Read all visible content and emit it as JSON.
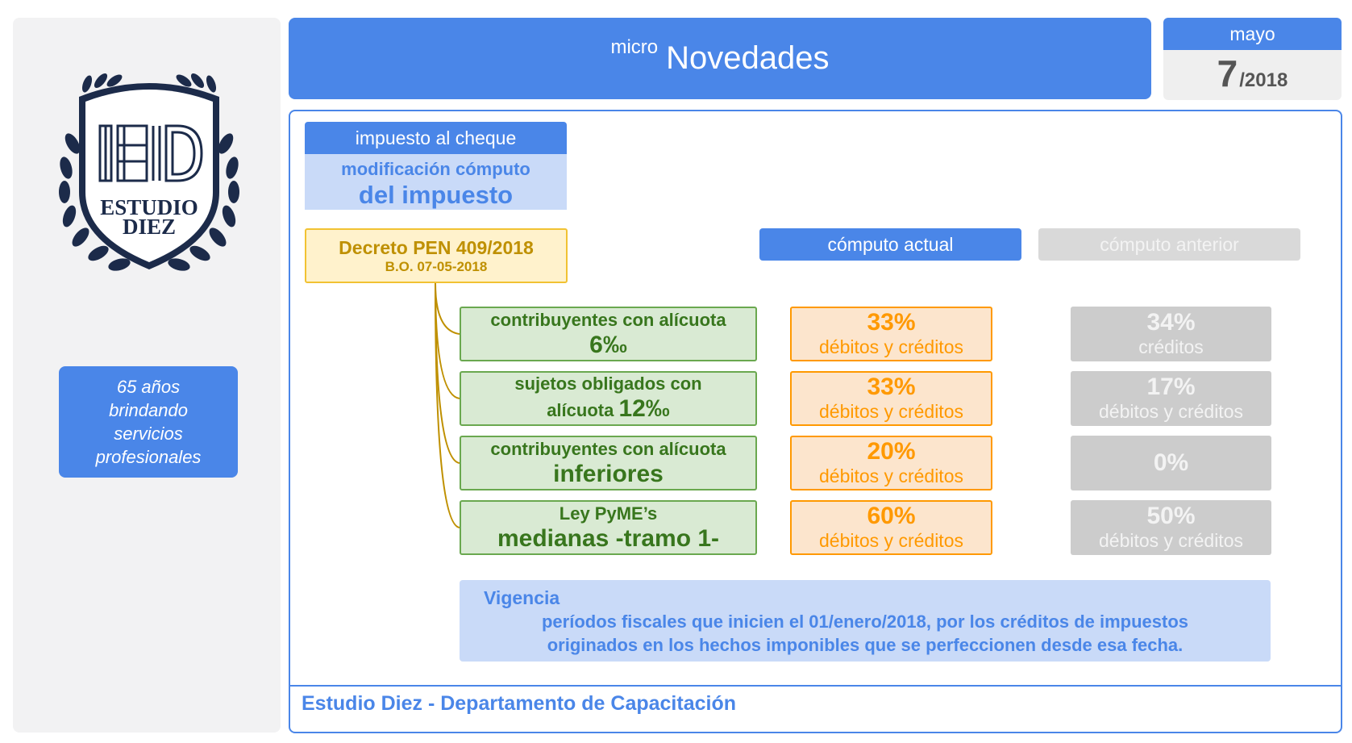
{
  "sidebar": {
    "logo": {
      "line1": "ESTUDIO",
      "line2": "DIEZ",
      "icon": "laurel-shield-logo"
    },
    "tagline": [
      "65 años",
      "brindando",
      "servicios",
      "profesionales"
    ]
  },
  "header": {
    "prefix": "micro",
    "title": "Novedades"
  },
  "date": {
    "month": "mayo",
    "day": "7",
    "year": "/2018"
  },
  "topic": {
    "label": "impuesto al cheque",
    "subtitle_line1": "modificación cómputo",
    "subtitle_line2": "del impuesto"
  },
  "decree": {
    "title": "Decreto PEN 409/2018",
    "date": "B.O. 07-05-2018"
  },
  "columns": {
    "actual": "cómputo actual",
    "anterior": "cómputo anterior"
  },
  "rows": [
    {
      "cat_line1": "contribuyentes con alícuota",
      "cat_line2": "6‰",
      "cur_pct": "33%",
      "cur_txt": "débitos y créditos",
      "prev_pct": "34%",
      "prev_txt": "créditos"
    },
    {
      "cat_line1": "sujetos obligados con",
      "cat_line2a": "alícuota ",
      "cat_line2b": "12‰",
      "cur_pct": "33%",
      "cur_txt": "débitos y créditos",
      "prev_pct": "17%",
      "prev_txt": "débitos y créditos"
    },
    {
      "cat_line1": "contribuyentes con alícuota",
      "cat_line2": "inferiores",
      "cur_pct": "20%",
      "cur_txt": "débitos y créditos",
      "prev_pct": "0%",
      "prev_txt": ""
    },
    {
      "cat_line1": "Ley PyME’s",
      "cat_line2": "medianas -tramo 1-",
      "cur_pct": "60%",
      "cur_txt": "débitos y créditos",
      "prev_pct": "50%",
      "prev_txt": "débitos y créditos"
    }
  ],
  "vigencia": {
    "title": "Vigencia",
    "line1": "períodos fiscales que inicien el 01/enero/2018, por los créditos de impuestos",
    "line2": "originados en los hechos imponibles que se perfeccionen desde esa fecha."
  },
  "footer": "Estudio Diez - Departamento de Capacitación",
  "colors": {
    "blue": "#4a86e8",
    "light_blue": "#c9daf8",
    "green": "#6aa84f",
    "orange": "#ff9900",
    "gray": "#cccccc",
    "gold": "#bf9000",
    "navy": "#1c2b4a"
  }
}
